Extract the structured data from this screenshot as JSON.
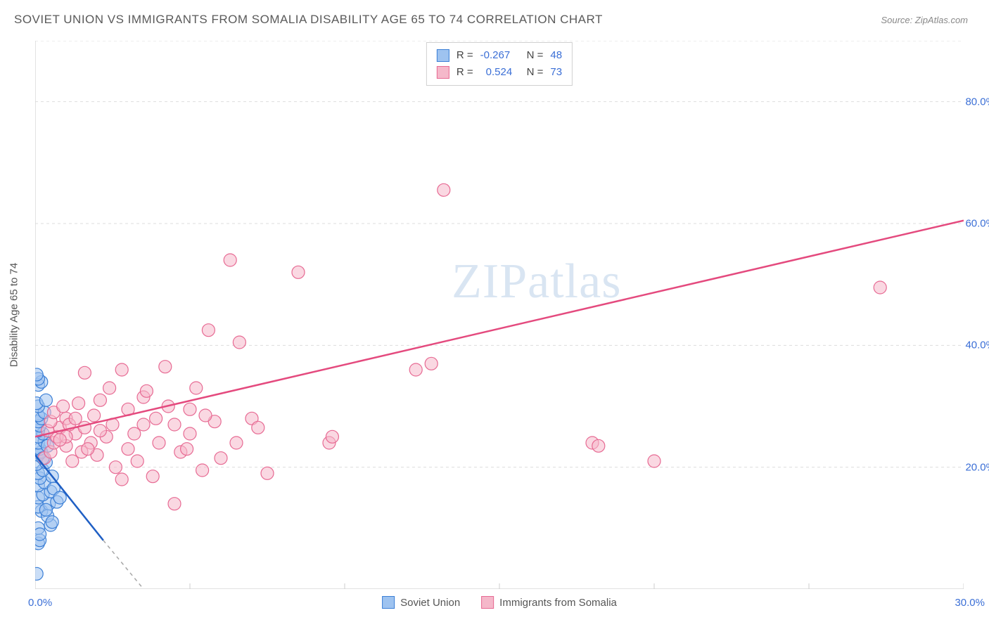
{
  "header": {
    "title": "SOVIET UNION VS IMMIGRANTS FROM SOMALIA DISABILITY AGE 65 TO 74 CORRELATION CHART",
    "source": "Source: ZipAtlas.com"
  },
  "chart": {
    "type": "scatter",
    "ylabel": "Disability Age 65 to 74",
    "watermark": "ZIPatlas",
    "background_color": "#ffffff",
    "grid_color": "#dddddd",
    "axis_color": "#d8d8d8",
    "tick_color": "#cccccc",
    "tick_label_color": "#3b6fd6",
    "xlim": [
      0,
      30
    ],
    "ylim": [
      0,
      90
    ],
    "x_major_ticks": [
      0,
      5,
      10,
      15,
      20,
      25,
      30
    ],
    "x_tick_labels": {
      "0": "0.0%",
      "30": "30.0%"
    },
    "y_gridlines": [
      20,
      40,
      60,
      80
    ],
    "y_tick_labels": {
      "20": "20.0%",
      "40": "40.0%",
      "60": "60.0%",
      "80": "80.0%"
    },
    "y_minor_dash": [
      0,
      90
    ],
    "series": [
      {
        "name": "Soviet Union",
        "fill_color": "#9ec3f0",
        "fill_opacity": 0.55,
        "stroke_color": "#3b7fd6",
        "line_color": "#1f5fc4",
        "line_dash_color": "#a7a7a7",
        "R": "-0.267",
        "N": "48",
        "trend": {
          "x1": 0.0,
          "y1": 22.0,
          "x2": 2.2,
          "y2": 8.0,
          "dash_x2": 3.5,
          "dash_y2": 0.0
        },
        "points": [
          [
            0.05,
            2.5
          ],
          [
            0.1,
            7.5
          ],
          [
            0.15,
            8.0
          ],
          [
            0.1,
            10.0
          ],
          [
            0.5,
            10.5
          ],
          [
            0.2,
            12.8
          ],
          [
            0.1,
            13.5
          ],
          [
            0.45,
            14.0
          ],
          [
            0.7,
            14.3
          ],
          [
            0.1,
            15.0
          ],
          [
            0.25,
            15.5
          ],
          [
            0.5,
            16.0
          ],
          [
            0.1,
            17.0
          ],
          [
            0.3,
            17.5
          ],
          [
            0.15,
            18.2
          ],
          [
            0.55,
            18.5
          ],
          [
            0.1,
            19.0
          ],
          [
            0.25,
            19.5
          ],
          [
            0.05,
            20.5
          ],
          [
            0.35,
            20.8
          ],
          [
            0.1,
            22.0
          ],
          [
            0.2,
            22.5
          ],
          [
            0.15,
            23.0
          ],
          [
            0.1,
            24.0
          ],
          [
            0.3,
            24.2
          ],
          [
            0.1,
            25.0
          ],
          [
            0.25,
            25.5
          ],
          [
            0.1,
            26.0
          ],
          [
            0.15,
            26.8
          ],
          [
            0.1,
            27.5
          ],
          [
            0.2,
            28.0
          ],
          [
            0.1,
            28.5
          ],
          [
            0.3,
            29.0
          ],
          [
            0.1,
            30.0
          ],
          [
            0.05,
            30.5
          ],
          [
            0.35,
            31.0
          ],
          [
            0.1,
            33.5
          ],
          [
            0.2,
            34.0
          ],
          [
            0.1,
            34.5
          ],
          [
            0.05,
            35.2
          ],
          [
            0.6,
            16.5
          ],
          [
            0.4,
            12.0
          ],
          [
            0.8,
            15.0
          ],
          [
            0.55,
            11.0
          ],
          [
            0.15,
            9.0
          ],
          [
            0.35,
            13.0
          ],
          [
            0.25,
            21.5
          ],
          [
            0.4,
            23.5
          ]
        ]
      },
      {
        "name": "Immigrants from Somalia",
        "fill_color": "#f5b8ca",
        "fill_opacity": 0.55,
        "stroke_color": "#e76a93",
        "line_color": "#e44a7e",
        "R": "0.524",
        "N": "73",
        "trend": {
          "x1": 0.0,
          "y1": 25.0,
          "x2": 30.0,
          "y2": 60.5
        },
        "points": [
          [
            0.3,
            21.5
          ],
          [
            0.5,
            22.5
          ],
          [
            0.6,
            24.0
          ],
          [
            0.7,
            25.0
          ],
          [
            0.4,
            26.0
          ],
          [
            0.8,
            26.5
          ],
          [
            0.5,
            27.5
          ],
          [
            1.0,
            28.0
          ],
          [
            0.6,
            29.0
          ],
          [
            1.0,
            23.5
          ],
          [
            1.2,
            21.0
          ],
          [
            1.3,
            25.5
          ],
          [
            1.4,
            30.5
          ],
          [
            1.5,
            22.5
          ],
          [
            1.6,
            35.5
          ],
          [
            1.6,
            26.5
          ],
          [
            1.8,
            24.0
          ],
          [
            1.9,
            28.5
          ],
          [
            2.0,
            22.0
          ],
          [
            2.1,
            31.0
          ],
          [
            2.3,
            25.0
          ],
          [
            2.4,
            33.0
          ],
          [
            2.5,
            27.0
          ],
          [
            2.8,
            18.0
          ],
          [
            2.8,
            36.0
          ],
          [
            3.0,
            23.0
          ],
          [
            3.0,
            29.5
          ],
          [
            3.2,
            25.5
          ],
          [
            3.3,
            21.0
          ],
          [
            3.5,
            31.5
          ],
          [
            3.5,
            27.0
          ],
          [
            3.8,
            18.5
          ],
          [
            3.9,
            28.0
          ],
          [
            4.0,
            24.0
          ],
          [
            4.2,
            36.5
          ],
          [
            4.3,
            30.0
          ],
          [
            4.5,
            27.0
          ],
          [
            4.5,
            14.0
          ],
          [
            4.7,
            22.5
          ],
          [
            5.0,
            29.5
          ],
          [
            5.0,
            25.5
          ],
          [
            5.2,
            33.0
          ],
          [
            5.4,
            19.5
          ],
          [
            5.6,
            42.5
          ],
          [
            5.8,
            27.5
          ],
          [
            6.0,
            21.5
          ],
          [
            6.3,
            54.0
          ],
          [
            6.5,
            24.0
          ],
          [
            6.6,
            40.5
          ],
          [
            7.0,
            28.0
          ],
          [
            7.2,
            26.5
          ],
          [
            7.5,
            19.0
          ],
          [
            8.5,
            52.0
          ],
          [
            9.5,
            24.0
          ],
          [
            9.6,
            25.0
          ],
          [
            12.3,
            36.0
          ],
          [
            12.8,
            37.0
          ],
          [
            13.2,
            65.5
          ],
          [
            18.0,
            24.0
          ],
          [
            18.2,
            23.5
          ],
          [
            20.0,
            21.0
          ],
          [
            27.3,
            49.5
          ],
          [
            1.1,
            27.0
          ],
          [
            0.9,
            30.0
          ],
          [
            1.7,
            23.0
          ],
          [
            2.6,
            20.0
          ],
          [
            3.6,
            32.5
          ],
          [
            4.9,
            23.0
          ],
          [
            5.5,
            28.5
          ],
          [
            1.0,
            25.0
          ],
          [
            0.8,
            24.5
          ],
          [
            1.3,
            28.0
          ],
          [
            2.1,
            26.0
          ]
        ]
      }
    ],
    "bottom_legend": [
      {
        "label": "Soviet Union",
        "fill": "#9ec3f0",
        "stroke": "#3b7fd6"
      },
      {
        "label": "Immigrants from Somalia",
        "fill": "#f5b8ca",
        "stroke": "#e76a93"
      }
    ]
  }
}
